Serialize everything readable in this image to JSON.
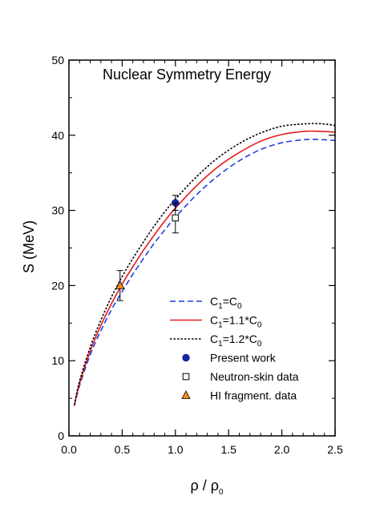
{
  "chart_data": {
    "type": "line",
    "title": "Nuclear Symmetry Energy",
    "xlabel": {
      "base": "ρ / ρ",
      "sub": "0"
    },
    "ylabel": "S (MeV)",
    "xlim": [
      0.0,
      2.5
    ],
    "ylim": [
      0,
      50
    ],
    "xticks": [
      0.0,
      0.5,
      1.0,
      1.5,
      2.0,
      2.5
    ],
    "xtick_labels": [
      "0.0",
      "0.5",
      "1.0",
      "1.5",
      "2.0",
      "2.5"
    ],
    "yticks": [
      0,
      10,
      20,
      30,
      40,
      50
    ],
    "ytick_labels": [
      "0",
      "10",
      "20",
      "30",
      "40",
      "50"
    ],
    "grid": false,
    "legend_position": "bottom-right",
    "colors": {
      "c0": "#1f3fe0",
      "c11": "#e41a1c",
      "c12": "#000000",
      "present": "#1428a0",
      "hi": "#f08c1e"
    },
    "series": [
      {
        "id": "c0",
        "legend": {
          "pre": "C",
          "s1": "1",
          "mid": "=C",
          "s2": "0",
          "post": ""
        },
        "style": "dashed",
        "x": [
          0.05,
          0.1,
          0.2,
          0.3,
          0.4,
          0.5,
          0.6,
          0.7,
          0.8,
          0.9,
          1.0,
          1.2,
          1.4,
          1.6,
          1.8,
          2.0,
          2.2,
          2.3,
          2.4,
          2.5
        ],
        "y": [
          4.0,
          6.7,
          10.8,
          14.0,
          16.8,
          19.2,
          21.5,
          23.6,
          25.6,
          27.4,
          29.1,
          32.1,
          34.6,
          36.6,
          38.1,
          39.0,
          39.4,
          39.45,
          39.4,
          39.3
        ]
      },
      {
        "id": "c11",
        "legend": {
          "pre": "C",
          "s1": "1",
          "mid": "=1.1*C",
          "s2": "0",
          "post": ""
        },
        "style": "solid",
        "x": [
          0.05,
          0.1,
          0.2,
          0.3,
          0.4,
          0.5,
          0.6,
          0.7,
          0.8,
          0.9,
          1.0,
          1.2,
          1.4,
          1.6,
          1.8,
          2.0,
          2.2,
          2.3,
          2.4,
          2.5
        ],
        "y": [
          4.0,
          7.0,
          11.3,
          14.7,
          17.6,
          20.2,
          22.5,
          24.7,
          26.7,
          28.6,
          30.3,
          33.3,
          35.8,
          37.7,
          39.2,
          40.1,
          40.5,
          40.55,
          40.5,
          40.4
        ]
      },
      {
        "id": "c12",
        "legend": {
          "pre": "C",
          "s1": "1",
          "mid": "=1.2*C",
          "s2": "0",
          "post": ""
        },
        "style": "dotted",
        "x": [
          0.05,
          0.1,
          0.2,
          0.3,
          0.4,
          0.5,
          0.6,
          0.7,
          0.8,
          0.9,
          1.0,
          1.2,
          1.4,
          1.6,
          1.8,
          2.0,
          2.2,
          2.3,
          2.4,
          2.5
        ],
        "y": [
          4.1,
          7.3,
          11.8,
          15.4,
          18.5,
          21.2,
          23.6,
          25.8,
          27.9,
          29.8,
          31.5,
          34.5,
          37.0,
          38.9,
          40.3,
          41.2,
          41.5,
          41.55,
          41.5,
          41.3
        ]
      }
    ],
    "points": [
      {
        "id": "present",
        "legend": "Present work",
        "marker": "circle",
        "x": 1.0,
        "y": 31.0,
        "err": 1.0
      },
      {
        "id": "skin",
        "legend": "Neutron-skin data",
        "marker": "square",
        "x": 1.0,
        "y": 29.0,
        "err": 2.0
      },
      {
        "id": "hi",
        "legend": "HI fragment. data",
        "marker": "triangle",
        "x": 0.48,
        "y": 20.0,
        "err": 2.0
      }
    ]
  }
}
